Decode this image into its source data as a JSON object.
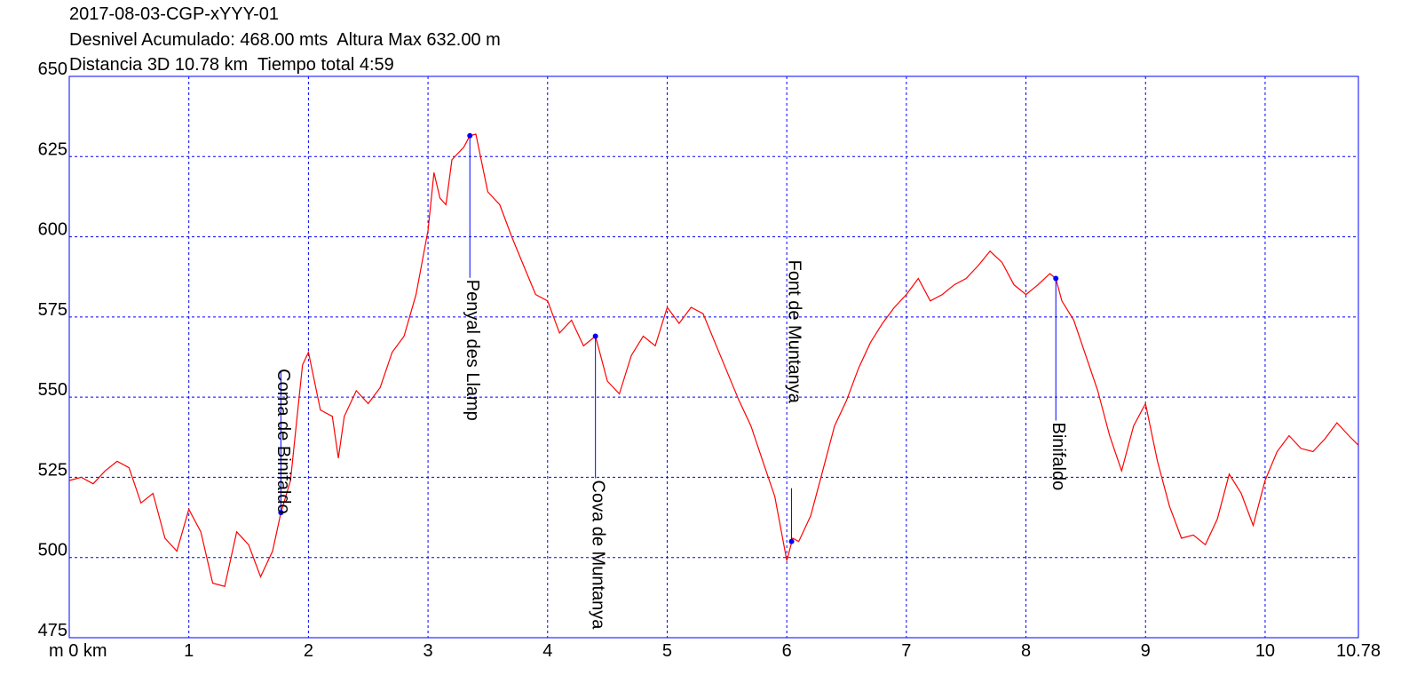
{
  "chart_data": {
    "type": "line",
    "title": "2017-08-03-CGP-xYYY-01",
    "subtitle": [
      "Desnivel Acumulado: 468.00 mts  Altura Max 632.00 m",
      "Distancia 3D 10.78 km  Tiempo total 4:59"
    ],
    "x": [
      0,
      0.1,
      0.2,
      0.3,
      0.4,
      0.5,
      0.6,
      0.7,
      0.8,
      0.9,
      1.0,
      1.1,
      1.2,
      1.3,
      1.4,
      1.5,
      1.6,
      1.7,
      1.77,
      1.85,
      1.95,
      2.0,
      2.1,
      2.2,
      2.25,
      2.3,
      2.4,
      2.5,
      2.6,
      2.7,
      2.8,
      2.9,
      3.0,
      3.05,
      3.1,
      3.15,
      3.2,
      3.3,
      3.35,
      3.4,
      3.5,
      3.6,
      3.7,
      3.8,
      3.9,
      4.0,
      4.1,
      4.2,
      4.3,
      4.4,
      4.5,
      4.6,
      4.7,
      4.8,
      4.9,
      5.0,
      5.1,
      5.2,
      5.3,
      5.4,
      5.5,
      5.6,
      5.7,
      5.8,
      5.9,
      6.0,
      6.05,
      6.1,
      6.2,
      6.3,
      6.4,
      6.5,
      6.6,
      6.7,
      6.8,
      6.9,
      7.0,
      7.1,
      7.2,
      7.3,
      7.4,
      7.5,
      7.6,
      7.7,
      7.8,
      7.9,
      8.0,
      8.1,
      8.2,
      8.25,
      8.3,
      8.4,
      8.5,
      8.6,
      8.7,
      8.8,
      8.9,
      9.0,
      9.1,
      9.2,
      9.3,
      9.4,
      9.5,
      9.6,
      9.7,
      9.8,
      9.9,
      10.0,
      10.1,
      10.2,
      10.3,
      10.4,
      10.5,
      10.6,
      10.7,
      10.78
    ],
    "series": [
      {
        "color": "#ff0000",
        "values": [
          524,
          525,
          523,
          527,
          530,
          528,
          517,
          520,
          506,
          502,
          515,
          508,
          492,
          491,
          508,
          504,
          494,
          502,
          514,
          524,
          560,
          564,
          546,
          544,
          531,
          544,
          552,
          548,
          553,
          564,
          569,
          582,
          602,
          620,
          612,
          610,
          624,
          628,
          631.5,
          632,
          614,
          610,
          600,
          591,
          582,
          580,
          570,
          574,
          566,
          569,
          555,
          551,
          563,
          569,
          566,
          578,
          573,
          578,
          576,
          567,
          558,
          549,
          541,
          530,
          519,
          499,
          506,
          505,
          513,
          527,
          541,
          549,
          559,
          567,
          573,
          578,
          582,
          587,
          580,
          582,
          585,
          587,
          591,
          595.5,
          592,
          585,
          582,
          585,
          588.5,
          587,
          580,
          574,
          563,
          552,
          538,
          527,
          541,
          548,
          530,
          516,
          506,
          507,
          504,
          512,
          526,
          520,
          510,
          524,
          533,
          538,
          534,
          533,
          537,
          542,
          538,
          535
        ]
      }
    ],
    "annotations": [
      {
        "text": "Coma de Binifaldo",
        "x": 1.77,
        "y": 514
      },
      {
        "text": "Penyal des Llamp",
        "x": 3.35,
        "y": 631.5
      },
      {
        "text": "Cova de Muntanya",
        "x": 4.4,
        "y": 569
      },
      {
        "text": "Font de Muntanya",
        "x": 6.04,
        "y": 505
      },
      {
        "text": "Binifaldo",
        "x": 8.25,
        "y": 587
      }
    ],
    "marker_color": "#0000ff",
    "xlim": [
      0,
      10.78
    ],
    "xticks": [
      {
        "value": 0,
        "label": "m 0 km"
      },
      1,
      2,
      3,
      4,
      5,
      6,
      7,
      8,
      9,
      10,
      10.78
    ],
    "ylim": [
      475,
      650
    ],
    "yticks": [
      475,
      500,
      525,
      550,
      575,
      600,
      625,
      650
    ],
    "grid": true
  }
}
